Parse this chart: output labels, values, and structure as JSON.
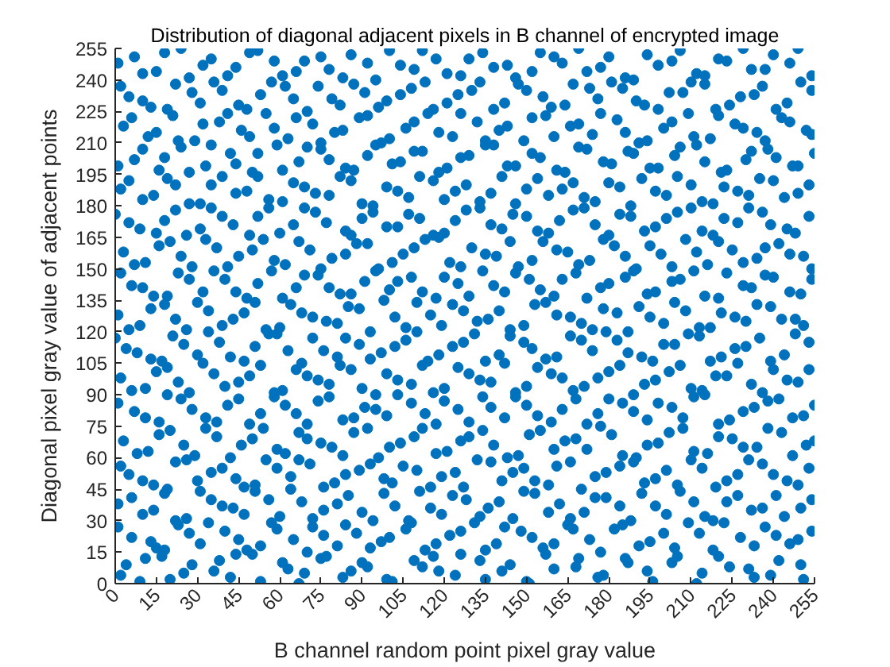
{
  "chart_data": {
    "type": "scatter",
    "title": "Distribution of diagonal adjacent pixels in B channel of encrypted image",
    "xlabel": "B channel random point pixel gray value",
    "ylabel": "Diagonal pixel gray value of adjacent points",
    "x": [
      2,
      11,
      20,
      28,
      36,
      44,
      53,
      61,
      69,
      77,
      83,
      92,
      101,
      109,
      118,
      126,
      135,
      144,
      151,
      160,
      169,
      178,
      187,
      196,
      205,
      214,
      224,
      233,
      242,
      251,
      6,
      15,
      23,
      31,
      40,
      48,
      57,
      65,
      72,
      81,
      88,
      97,
      106,
      113,
      122,
      131,
      139,
      148,
      156,
      165,
      173,
      182,
      191,
      200,
      209,
      218,
      228,
      237,
      246,
      254,
      1,
      10,
      18,
      26,
      35,
      43,
      51,
      60,
      68,
      76,
      85,
      94,
      102,
      111,
      119,
      128,
      136,
      145,
      153,
      162,
      171,
      179,
      188,
      197,
      206,
      215,
      223,
      232,
      241,
      250,
      5,
      14,
      22,
      30,
      39,
      47,
      55,
      64,
      71,
      80,
      89,
      98,
      105,
      115,
      124,
      132,
      141,
      149,
      158,
      166,
      175,
      184,
      193,
      201,
      210,
      219,
      227,
      236,
      245,
      253,
      3,
      12,
      20,
      29,
      37,
      46,
      54,
      62,
      70,
      79,
      87,
      96,
      104,
      112,
      121,
      129,
      138,
      147,
      155,
      164,
      172,
      181,
      190,
      198,
      207,
      216,
      225,
      234,
      243,
      252,
      7,
      16,
      24,
      33,
      41,
      49,
      58,
      66,
      74,
      83,
      91,
      99,
      108,
      117,
      125,
      134,
      142,
      150,
      159,
      168,
      176,
      185,
      194,
      203,
      211,
      220,
      229,
      238,
      247,
      255,
      2,
      11,
      19,
      27,
      36,
      45,
      53,
      61,
      70,
      78,
      86,
      95,
      103,
      112,
      120,
      129,
      137,
      146,
      154,
      163,
      171,
      180,
      189,
      197,
      206,
      214,
      223,
      232,
      240,
      249,
      4,
      13,
      21,
      30,
      38,
      47,
      56,
      63,
      72,
      81,
      89,
      97,
      106,
      114,
      123,
      131,
      140,
      149,
      157,
      166,
      174,
      183,
      192,
      200,
      209,
      217,
      226,
      235,
      244,
      253,
      1,
      9,
      18,
      26,
      34,
      43,
      51,
      60,
      68,
      77,
      85,
      93,
      102,
      110,
      119,
      127,
      136,
      144,
      153,
      161,
      170,
      178,
      187,
      195,
      204,
      213,
      221,
      230,
      239,
      248,
      6,
      14,
      23,
      32,
      40,
      48,
      57,
      66,
      74,
      82,
      91,
      100,
      108,
      117,
      125,
      134,
      142,
      151,
      160,
      168,
      177,
      186,
      194,
      203,
      211,
      220,
      229,
      237,
      246,
      254,
      3,
      11,
      20,
      28,
      37,
      45,
      54,
      62,
      71,
      79,
      88,
      96,
      105,
      113,
      122,
      130,
      139,
      147,
      156,
      165,
      173,
      182,
      190,
      199,
      208,
      216,
      225,
      234,
      242,
      251,
      5,
      15,
      22,
      31,
      39,
      49,
      56,
      65,
      73,
      84,
      90,
      99,
      107,
      116,
      124,
      133,
      141,
      150,
      158,
      167,
      175,
      184,
      193,
      201,
      210,
      218,
      227,
      236,
      245,
      253,
      2,
      10,
      19,
      27,
      35,
      44,
      52,
      61,
      69,
      78,
      86,
      94,
      103,
      111,
      120,
      128,
      137,
      146,
      154,
      163,
      171,
      180,
      188,
      197,
      205,
      214,
      222,
      231,
      240,
      249,
      7,
      16,
      24,
      33,
      42,
      50,
      59,
      67,
      75,
      84,
      92,
      101,
      109,
      118,
      126,
      135,
      143,
      152,
      161,
      169,
      178,
      187,
      195,
      204,
      212,
      221,
      230,
      238,
      247,
      255,
      3,
      12,
      21,
      29,
      38,
      46,
      55,
      63,
      72,
      80,
      89,
      97,
      106,
      114,
      123,
      132,
      140,
      149,
      157,
      166,
      174,
      183,
      191,
      200,
      209,
      217,
      226,
      234,
      243,
      252,
      5,
      13,
      22,
      31,
      39,
      48,
      57,
      65,
      74,
      82,
      91,
      99,
      108,
      116,
      125,
      133,
      142,
      150,
      159,
      167,
      176,
      185,
      193,
      202,
      210,
      219,
      228,
      236,
      245,
      254,
      1,
      10,
      18,
      27,
      35,
      44,
      52,
      61,
      69,
      78,
      86,
      95,
      104,
      112,
      121,
      129,
      138,
      146,
      155,
      163,
      172,
      180,
      189,
      198,
      206,
      215,
      223,
      232,
      240,
      249,
      4,
      9,
      17,
      25,
      38,
      42,
      50,
      63,
      67,
      75,
      86,
      90,
      99,
      112,
      116,
      124,
      133,
      141,
      150,
      157,
      168,
      176,
      186,
      194,
      203,
      212,
      220,
      231,
      239,
      250,
      1,
      13,
      18,
      27,
      34,
      45,
      53,
      59,
      70,
      76,
      84,
      93,
      100,
      108,
      117,
      126,
      135,
      142,
      152,
      160,
      167,
      177,
      185,
      195,
      204,
      213,
      222,
      233,
      241,
      249,
      6,
      14,
      22,
      31,
      39,
      47,
      56,
      64,
      72,
      81,
      90,
      98,
      107,
      115,
      123,
      133,
      140,
      149,
      158,
      166,
      175,
      184,
      192,
      201,
      211,
      218,
      227,
      236,
      244,
      254,
      2,
      10,
      19,
      26,
      35,
      44,
      51,
      59,
      67,
      76,
      84,
      93,
      101,
      110,
      119,
      127,
      137,
      145,
      153,
      161,
      170,
      179,
      189,
      197,
      205,
      214,
      223,
      231,
      240,
      249,
      8,
      16,
      25,
      33,
      42,
      50,
      59,
      67,
      75,
      83,
      92,
      100,
      109,
      117,
      126,
      134,
      143,
      151,
      160,
      168,
      177,
      185,
      194,
      202,
      211,
      220,
      229,
      238,
      247,
      255,
      1,
      11,
      19,
      28,
      37,
      45,
      53,
      62,
      70,
      78,
      87,
      95,
      103,
      113,
      120,
      129,
      137,
      146,
      154,
      163,
      172,
      180,
      189,
      198,
      207,
      215,
      224,
      233,
      242,
      251,
      6,
      15,
      23,
      32,
      40,
      49,
      58,
      66,
      74,
      82,
      90,
      99,
      108,
      116,
      125,
      133,
      142,
      150,
      159,
      167,
      176,
      184,
      193,
      202,
      210,
      219,
      227,
      236,
      245,
      253,
      0,
      8,
      17,
      25,
      34,
      42,
      51,
      59,
      68,
      76,
      84,
      93,
      102,
      110,
      118,
      127,
      135,
      144,
      152,
      161,
      170,
      179,
      187,
      196,
      204,
      213,
      221,
      230,
      239,
      248,
      5,
      13,
      22,
      30,
      39,
      47,
      55,
      64,
      72,
      81,
      89,
      98,
      106,
      115,
      123,
      132,
      140,
      149,
      157,
      166,
      174,
      183,
      191,
      200,
      208,
      217,
      226,
      234,
      243,
      251,
      2,
      10,
      19,
      27,
      36,
      44,
      52,
      61,
      69,
      78,
      86,
      95,
      103,
      112,
      120,
      129,
      138,
      146,
      155,
      163,
      172,
      180,
      189,
      197,
      206,
      215,
      223,
      232,
      240,
      250,
      7,
      16,
      24,
      33,
      41,
      50,
      58,
      67,
      75,
      84,
      92,
      101,
      109,
      118,
      126,
      135,
      144,
      152,
      161,
      169,
      178,
      186,
      195,
      203,
      212,
      220,
      229,
      237,
      246,
      254,
      0,
      9,
      18,
      26,
      35,
      43,
      52,
      60,
      69,
      77,
      86,
      94,
      103,
      111,
      120,
      128,
      137,
      145,
      154,
      162,
      171,
      180,
      188,
      197,
      205,
      214,
      222,
      231,
      239,
      248,
      5,
      14,
      22,
      31,
      39,
      48,
      56,
      65,
      73,
      82,
      90,
      99,
      107,
      116,
      124,
      133,
      141,
      150,
      158,
      167,
      175,
      184,
      192,
      201,
      210,
      218,
      227,
      235,
      244,
      253,
      1,
      10,
      18,
      27,
      35,
      44,
      52,
      61,
      70,
      78,
      87,
      95,
      104,
      112,
      121,
      129,
      138,
      146,
      155,
      164,
      172,
      181,
      189,
      198,
      206,
      215,
      223,
      232,
      241,
      249,
      6,
      15,
      23,
      32,
      41,
      49,
      58,
      66,
      75,
      83,
      92,
      100,
      109,
      118,
      126,
      135,
      143,
      152,
      160,
      169,
      177,
      186,
      194,
      203,
      211,
      220,
      229,
      237,
      246,
      254,
      2,
      10,
      19,
      28,
      36,
      45,
      53,
      62,
      70,
      79,
      87,
      96,
      104,
      113,
      121,
      130,
      138,
      147,
      156,
      164,
      173,
      181,
      190,
      198,
      207,
      215,
      224,
      233,
      241,
      250,
      7,
      15,
      24,
      32,
      41,
      49,
      58,
      66,
      75,
      83,
      92,
      100,
      109,
      117,
      126,
      134,
      143,
      152,
      160,
      169,
      177,
      186,
      194,
      203,
      212,
      220,
      229,
      237,
      246,
      254
    ],
    "values": [
      4,
      12,
      2,
      9,
      6,
      14,
      1,
      10,
      5,
      13,
      3,
      8,
      1,
      11,
      6,
      14,
      2,
      9,
      0,
      7,
      12,
      4,
      10,
      1,
      13,
      5,
      8,
      3,
      11,
      2,
      22,
      17,
      28,
      19,
      25,
      16,
      29,
      21,
      27,
      18,
      24,
      20,
      26,
      16,
      23,
      29,
      19,
      25,
      17,
      28,
      21,
      26,
      18,
      24,
      29,
      16,
      22,
      27,
      19,
      25,
      38,
      33,
      43,
      31,
      40,
      36,
      44,
      32,
      39,
      35,
      42,
      30,
      37,
      44,
      33,
      40,
      36,
      31,
      43,
      38,
      34,
      41,
      30,
      37,
      44,
      32,
      39,
      35,
      42,
      36,
      52,
      47,
      58,
      49,
      55,
      46,
      59,
      51,
      57,
      48,
      54,
      50,
      56,
      46,
      53,
      59,
      49,
      55,
      47,
      58,
      51,
      56,
      48,
      54,
      59,
      46,
      52,
      57,
      49,
      55,
      68,
      63,
      73,
      61,
      70,
      66,
      74,
      62,
      69,
      65,
      72,
      60,
      67,
      74,
      63,
      70,
      66,
      61,
      73,
      68,
      64,
      71,
      60,
      67,
      74,
      62,
      69,
      65,
      72,
      66,
      82,
      77,
      88,
      79,
      85,
      76,
      89,
      81,
      87,
      78,
      84,
      80,
      86,
      76,
      83,
      89,
      79,
      85,
      77,
      88,
      81,
      86,
      78,
      84,
      89,
      76,
      82,
      87,
      79,
      85,
      98,
      93,
      103,
      91,
      100,
      96,
      104,
      92,
      99,
      95,
      102,
      90,
      97,
      104,
      93,
      100,
      96,
      91,
      103,
      98,
      94,
      101,
      90,
      97,
      104,
      92,
      99,
      95,
      102,
      96,
      112,
      107,
      118,
      109,
      115,
      106,
      119,
      111,
      117,
      108,
      114,
      110,
      116,
      106,
      113,
      119,
      109,
      115,
      107,
      118,
      111,
      116,
      108,
      114,
      119,
      106,
      112,
      117,
      109,
      115,
      128,
      123,
      133,
      121,
      130,
      126,
      134,
      122,
      129,
      125,
      132,
      120,
      127,
      134,
      123,
      130,
      126,
      121,
      133,
      128,
      124,
      131,
      120,
      127,
      134,
      122,
      129,
      125,
      132,
      126,
      142,
      137,
      148,
      139,
      145,
      136,
      149,
      141,
      147,
      138,
      144,
      140,
      146,
      136,
      143,
      149,
      139,
      145,
      137,
      148,
      141,
      146,
      138,
      144,
      149,
      136,
      142,
      147,
      139,
      145,
      158,
      153,
      163,
      151,
      160,
      156,
      164,
      152,
      159,
      155,
      162,
      150,
      157,
      164,
      153,
      160,
      156,
      151,
      163,
      158,
      154,
      161,
      150,
      157,
      164,
      152,
      159,
      155,
      162,
      156,
      172,
      167,
      178,
      169,
      175,
      166,
      179,
      171,
      177,
      168,
      174,
      170,
      176,
      166,
      173,
      179,
      169,
      175,
      167,
      178,
      171,
      176,
      168,
      174,
      179,
      166,
      172,
      177,
      169,
      175,
      188,
      183,
      193,
      181,
      190,
      186,
      194,
      182,
      189,
      185,
      192,
      180,
      187,
      194,
      183,
      190,
      186,
      181,
      193,
      188,
      184,
      191,
      180,
      187,
      194,
      182,
      189,
      185,
      192,
      186,
      202,
      197,
      208,
      199,
      205,
      196,
      209,
      201,
      207,
      198,
      204,
      200,
      206,
      196,
      203,
      209,
      199,
      205,
      197,
      208,
      201,
      206,
      198,
      204,
      209,
      196,
      202,
      207,
      199,
      205,
      218,
      213,
      223,
      211,
      220,
      216,
      224,
      212,
      219,
      215,
      222,
      210,
      217,
      224,
      213,
      220,
      216,
      211,
      223,
      218,
      214,
      221,
      210,
      217,
      224,
      212,
      219,
      215,
      222,
      216,
      232,
      227,
      238,
      229,
      235,
      226,
      239,
      231,
      237,
      228,
      234,
      230,
      236,
      226,
      233,
      239,
      229,
      235,
      227,
      238,
      231,
      236,
      228,
      234,
      239,
      226,
      232,
      237,
      229,
      235,
      248,
      243,
      253,
      241,
      250,
      246,
      254,
      242,
      249,
      245,
      252,
      240,
      247,
      254,
      243,
      250,
      246,
      241,
      253,
      248,
      244,
      251,
      240,
      247,
      254,
      242,
      249,
      245,
      252,
      255,
      9,
      1,
      13,
      5,
      11,
      3,
      14,
      7,
      0,
      12,
      6,
      10,
      2,
      8,
      13,
      4,
      11,
      6,
      1,
      14,
      8,
      3,
      12,
      6,
      10,
      0,
      13,
      7,
      4,
      9,
      27,
      20,
      16,
      24,
      29,
      21,
      18,
      26,
      15,
      23,
      28,
      17,
      22,
      29,
      19,
      25,
      16,
      27,
      22,
      19,
      26,
      15,
      28,
      20,
      17,
      24,
      29,
      18,
      23,
      21,
      41,
      35,
      30,
      44,
      37,
      33,
      40,
      45,
      31,
      38,
      34,
      43,
      30,
      36,
      42,
      32,
      39,
      44,
      34,
      31,
      41,
      37,
      43,
      33,
      39,
      30,
      42,
      36,
      32,
      40,
      56,
      49,
      45,
      59,
      53,
      50,
      47,
      55,
      59,
      46,
      52,
      57,
      48,
      54,
      51,
      46,
      58,
      53,
      49,
      56,
      45,
      53,
      58,
      50,
      47,
      55,
      49,
      59,
      52,
      47,
      62,
      71,
      66,
      74,
      60,
      69,
      64,
      72,
      67,
      61,
      74,
      65,
      70,
      62,
      68,
      73,
      60,
      71,
      64,
      69,
      75,
      61,
      66,
      72,
      63,
      70,
      65,
      74,
      61,
      68,
      86,
      79,
      90,
      83,
      77,
      88,
      81,
      85,
      76,
      89,
      79,
      83,
      90,
      81,
      87,
      77,
      84,
      89,
      80,
      83,
      76,
      88,
      82,
      86,
      79,
      90,
      78,
      84,
      88,
      80,
      92,
      101,
      96,
      105,
      94,
      99,
      91,
      102,
      97,
      104,
      93,
      100,
      95,
      91,
      103,
      97,
      105,
      94,
      100,
      92,
      98,
      104,
      95,
      101,
      93,
      99,
      105,
      91,
      97,
      102,
      117,
      110,
      106,
      114,
      120,
      108,
      113,
      119,
      105,
      111,
      117,
      107,
      113,
      120,
      109,
      115,
      106,
      118,
      112,
      108,
      116,
      120,
      110,
      106,
      114,
      118,
      108,
      113,
      106,
      119,
      121,
      131,
      126,
      134,
      123,
      129,
      121,
      133,
      127,
      124,
      131,
      135,
      122,
      128,
      133,
      125,
      130,
      123,
      134,
      127,
      121,
      129,
      132,
      124,
      130,
      122,
      127,
      133,
      126,
      123,
      148,
      141,
      137,
      145,
      149,
      139,
      143,
      136,
      147,
      141,
      138,
      149,
      144,
      139,
      146,
      137,
      142,
      148,
      140,
      145,
      136,
      143,
      149,
      139,
      145,
      137,
      148,
      141,
      146,
      138,
      152,
      161,
      156,
      164,
      151,
      159,
      154,
      163,
      150,
      157,
      162,
      153,
      160,
      165,
      151,
      157,
      163,
      154,
      159,
      152,
      164,
      156,
      161,
      151,
      158,
      163,
      153,
      160,
      157,
      150,
      176,
      169,
      173,
      166,
      179,
      171,
      175,
      167,
      179,
      172,
      166,
      177,
      170,
      174,
      167,
      178,
      171,
      176,
      168,
      173,
      179,
      166,
      175,
      170,
      177,
      168,
      174,
      179,
      171,
      167,
      192,
      185,
      190,
      181,
      194,
      187,
      183,
      191,
      186,
      194,
      181,
      189,
      184,
      192,
      187,
      182,
      194,
      188,
      185,
      191,
      182,
      189,
      193,
      185,
      190,
      181,
      187,
      193,
      184,
      190,
      199,
      207,
      203,
      196,
      209,
      200,
      205,
      197,
      208,
      202,
      197,
      209,
      201,
      206,
      198,
      204,
      209,
      199,
      203,
      196,
      207,
      200,
      205,
      198,
      208,
      201,
      197,
      206,
      203,
      199,
      222,
      215,
      211,
      219,
      224,
      213,
      217,
      222,
      210,
      216,
      223,
      212,
      220,
      215,
      224,
      211,
      218,
      222,
      213,
      219,
      224,
      215,
      211,
      220,
      213,
      223,
      217,
      211,
      220,
      214,
      237,
      230,
      226,
      234,
      239,
      228,
      233,
      237,
      225,
      231,
      238,
      227,
      233,
      239,
      229,
      235,
      226,
      238,
      232,
      228,
      236,
      239,
      230,
      226,
      234,
      238,
      228,
      233,
      226,
      239,
      251,
      244,
      255,
      247,
      242,
      253,
      249,
      244,
      251,
      241,
      248,
      254,
      245,
      250,
      242,
      253,
      247,
      244,
      251,
      255,
      246,
      241,
      252,
      249,
      243,
      250,
      255,
      245,
      248,
      242
    ],
    "color": "#0072bd",
    "marker": "circle",
    "xlim": [
      0,
      255
    ],
    "ylim": [
      0,
      255
    ],
    "xticks": [
      0,
      15,
      30,
      45,
      60,
      75,
      90,
      105,
      120,
      135,
      150,
      165,
      180,
      195,
      210,
      225,
      240,
      255
    ],
    "yticks": [
      0,
      15,
      30,
      45,
      60,
      75,
      90,
      105,
      120,
      135,
      150,
      165,
      180,
      195,
      210,
      225,
      240,
      255
    ],
    "grid": false
  }
}
